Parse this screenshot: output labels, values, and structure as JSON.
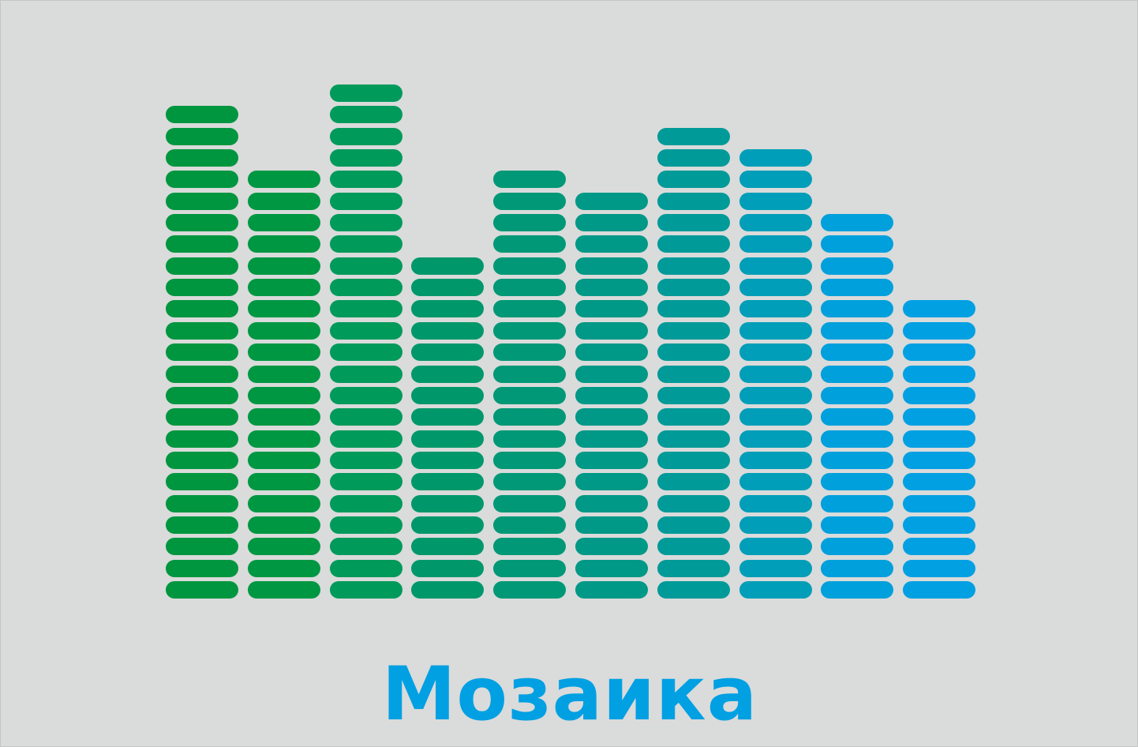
{
  "logo": {
    "text": "Мозаика",
    "color": "#00a0e3",
    "columns": [
      {
        "segments": 23,
        "color": "#00963f"
      },
      {
        "segments": 20,
        "color": "#009743"
      },
      {
        "segments": 24,
        "color": "#009a5b"
      },
      {
        "segments": 16,
        "color": "#00986a"
      },
      {
        "segments": 20,
        "color": "#009876"
      },
      {
        "segments": 19,
        "color": "#009886"
      },
      {
        "segments": 22,
        "color": "#009a98"
      },
      {
        "segments": 21,
        "color": "#009eb8"
      },
      {
        "segments": 18,
        "color": "#00a0dc"
      },
      {
        "segments": 14,
        "color": "#00a0e3"
      }
    ]
  }
}
